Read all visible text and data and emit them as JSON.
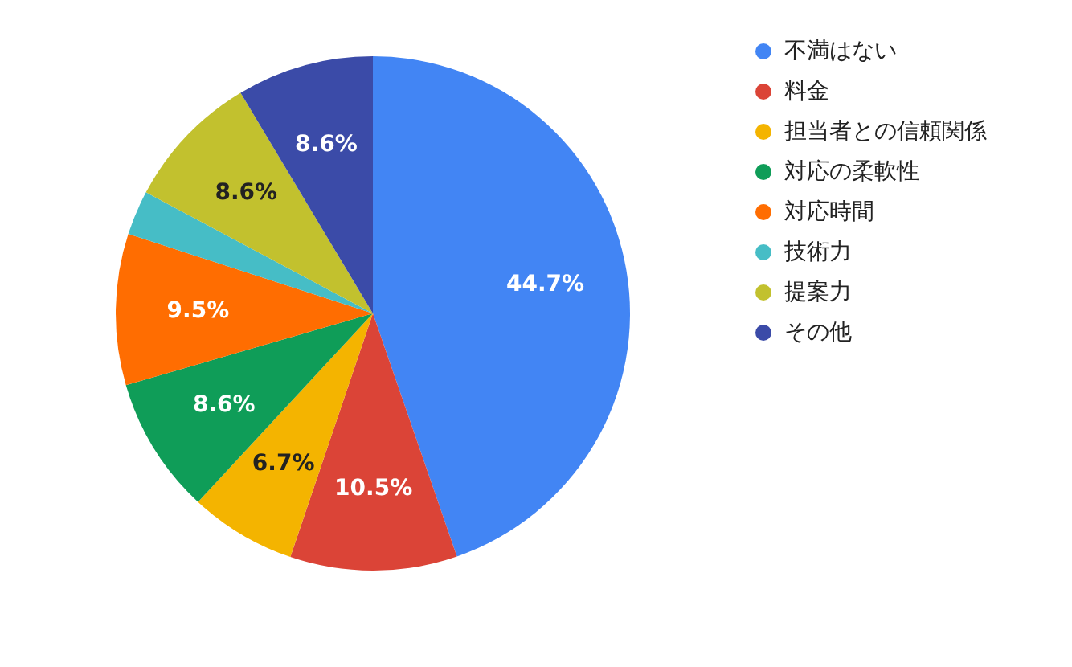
{
  "chart_data": {
    "type": "pie",
    "categories": [
      "不満はない",
      "料金",
      "担当者との信頼関係",
      "対応の柔軟性",
      "対応時間",
      "技術力",
      "提案力",
      "その他"
    ],
    "values": [
      44.7,
      10.5,
      6.7,
      8.6,
      9.5,
      2.8,
      8.6,
      8.6
    ],
    "colors": [
      "#4285f4",
      "#db4437",
      "#f4b400",
      "#0f9d58",
      "#ff6d01",
      "#46bdc6",
      "#c2c12e",
      "#3b4ba8"
    ],
    "value_labels": [
      "44.7%",
      "10.5%",
      "6.7%",
      "8.6%",
      "9.5%",
      null,
      "8.6%",
      "8.6%"
    ],
    "legend": "right"
  }
}
